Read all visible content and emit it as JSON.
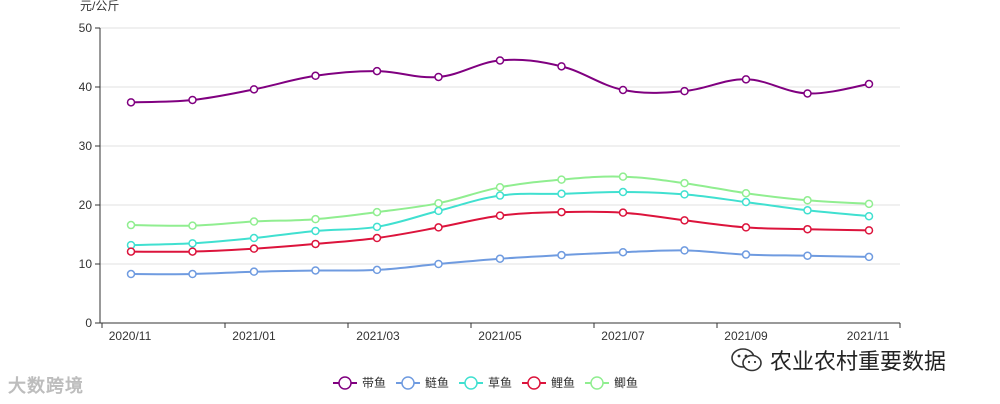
{
  "watermarks": {
    "left": "大数跨境",
    "right": "农业农村重要数据"
  },
  "chart_data": {
    "type": "line",
    "title": "",
    "ylabel": "元/公斤",
    "xlabel": "",
    "ylim": [
      0,
      50
    ],
    "yticks": [
      0,
      10,
      20,
      30,
      40,
      50
    ],
    "x_tick_labels": [
      "2020/11",
      "2021/01",
      "2021/03",
      "2021/05",
      "2021/07",
      "2021/09",
      "2021/11"
    ],
    "categories": [
      "2020/11",
      "2020/12",
      "2021/01",
      "2021/02",
      "2021/03",
      "2021/04",
      "2021/05",
      "2021/06",
      "2021/07",
      "2021/08",
      "2021/09",
      "2021/10",
      "2021/11"
    ],
    "grid": true,
    "legend_position": "bottom-center",
    "series": [
      {
        "name": "带鱼",
        "color": "#800080",
        "values": [
          37.4,
          37.8,
          39.6,
          41.9,
          42.7,
          41.7,
          44.5,
          43.5,
          39.5,
          39.3,
          41.3,
          38.9,
          40.5
        ]
      },
      {
        "name": "鲢鱼",
        "color": "#6f9be0",
        "values": [
          8.3,
          8.3,
          8.7,
          8.9,
          9.0,
          10.0,
          10.9,
          11.5,
          12.0,
          12.3,
          11.6,
          11.4,
          11.2
        ]
      },
      {
        "name": "草鱼",
        "color": "#40e0d0",
        "values": [
          13.2,
          13.5,
          14.4,
          15.6,
          16.3,
          19.0,
          21.6,
          21.9,
          22.2,
          21.8,
          20.5,
          19.1,
          18.1
        ]
      },
      {
        "name": "鲤鱼",
        "color": "#dc143c",
        "values": [
          12.1,
          12.1,
          12.6,
          13.4,
          14.4,
          16.2,
          18.2,
          18.8,
          18.7,
          17.4,
          16.2,
          15.9,
          15.7
        ]
      },
      {
        "name": "鲫鱼",
        "color": "#90ee90",
        "values": [
          16.6,
          16.5,
          17.2,
          17.6,
          18.8,
          20.3,
          23.0,
          24.3,
          24.8,
          23.7,
          22.0,
          20.8,
          20.2
        ]
      }
    ]
  }
}
